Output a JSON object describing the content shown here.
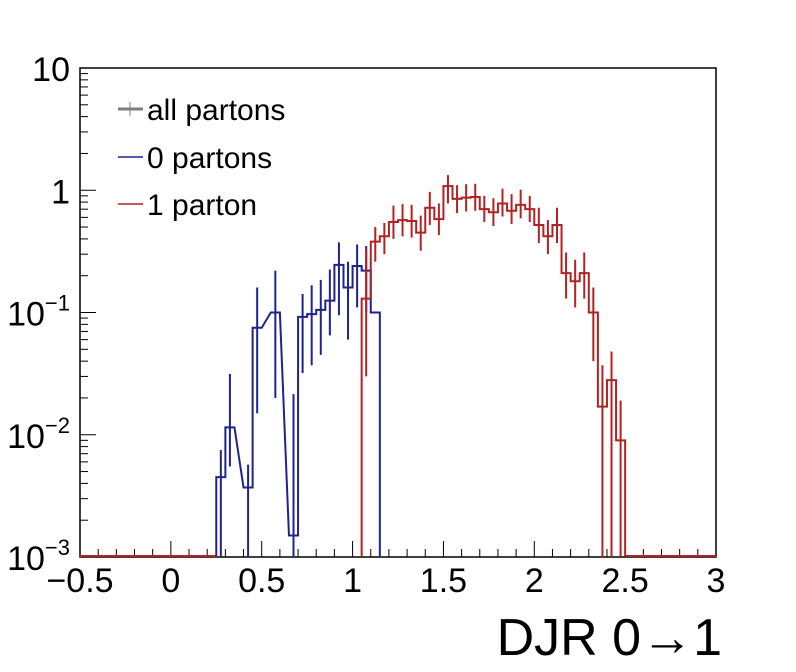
{
  "chart_data": {
    "type": "histogram",
    "xlabel": "DJR 0→1",
    "ylabel": "",
    "xlim": [
      -0.5,
      3
    ],
    "ylim": [
      0.001,
      10
    ],
    "y_scale": "log",
    "grid": false,
    "legend_position": "top-left",
    "x_ticks": [
      "−0.5",
      "0",
      "0.5",
      "1",
      "1.5",
      "2",
      "2.5",
      "3"
    ],
    "x_tick_values": [
      -0.5,
      0,
      0.5,
      1,
      1.5,
      2,
      2.5,
      3
    ],
    "y_ticks": [
      {
        "value": 10,
        "base": "10",
        "exp": ""
      },
      {
        "value": 1,
        "base": "1",
        "exp": ""
      },
      {
        "value": 0.1,
        "base": "10",
        "exp": "−1"
      },
      {
        "value": 0.01,
        "base": "10",
        "exp": "−2"
      },
      {
        "value": 0.001,
        "base": "10",
        "exp": "−3"
      }
    ],
    "bin_width": 0.05,
    "legend": [
      {
        "name": "all partons",
        "color": "#7f7f7f"
      },
      {
        "name": "0 partons",
        "color": "#1f2390"
      },
      {
        "name": "1 parton",
        "color": "#b22222"
      }
    ],
    "series": [
      {
        "name": "0 partons",
        "color": "#1f2390",
        "bins": [
          {
            "x": 0.25,
            "y": 0.0045,
            "yerr_low": 0.0045,
            "yerr_high": 0.003
          },
          {
            "x": 0.3,
            "y": 0.0115,
            "yerr_low": 0.006,
            "yerr_high": 0.02
          },
          {
            "x": 0.4,
            "y": 0.0037,
            "yerr_low": 0.0037,
            "yerr_high": 0.002
          },
          {
            "x": 0.45,
            "y": 0.075,
            "yerr_low": 0.06,
            "yerr_high": 0.085
          },
          {
            "x": 0.55,
            "y": 0.1,
            "yerr_low": 0.08,
            "yerr_high": 0.12
          },
          {
            "x": 0.65,
            "y": 0.0015,
            "yerr_low": 0.0015,
            "yerr_high": 0.02
          },
          {
            "x": 0.7,
            "y": 0.092,
            "yerr_low": 0.06,
            "yerr_high": 0.05
          },
          {
            "x": 0.75,
            "y": 0.097,
            "yerr_low": 0.06,
            "yerr_high": 0.07
          },
          {
            "x": 0.8,
            "y": 0.105,
            "yerr_low": 0.06,
            "yerr_high": 0.08
          },
          {
            "x": 0.85,
            "y": 0.125,
            "yerr_low": 0.06,
            "yerr_high": 0.1
          },
          {
            "x": 0.9,
            "y": 0.245,
            "yerr_low": 0.15,
            "yerr_high": 0.13
          },
          {
            "x": 0.95,
            "y": 0.16,
            "yerr_low": 0.1,
            "yerr_high": 0.1
          },
          {
            "x": 1.0,
            "y": 0.24,
            "yerr_low": 0.13,
            "yerr_high": 0.12
          },
          {
            "x": 1.05,
            "y": 0.22,
            "yerr_low": 0.12,
            "yerr_high": 0.13
          },
          {
            "x": 1.1,
            "y": 0.1,
            "yerr_low": 0.0,
            "yerr_high": 0.0
          }
        ]
      },
      {
        "name": "1 parton",
        "color": "#b22222",
        "bins": [
          {
            "x": 1.05,
            "y": 0.13,
            "yerr_low": 0.1,
            "yerr_high": 0.2
          },
          {
            "x": 1.1,
            "y": 0.38,
            "yerr_low": 0.12,
            "yerr_high": 0.12
          },
          {
            "x": 1.15,
            "y": 0.42,
            "yerr_low": 0.12,
            "yerr_high": 0.12
          },
          {
            "x": 1.2,
            "y": 0.55,
            "yerr_low": 0.15,
            "yerr_high": 0.2
          },
          {
            "x": 1.25,
            "y": 0.57,
            "yerr_low": 0.15,
            "yerr_high": 0.2
          },
          {
            "x": 1.3,
            "y": 0.56,
            "yerr_low": 0.15,
            "yerr_high": 0.2
          },
          {
            "x": 1.35,
            "y": 0.45,
            "yerr_low": 0.13,
            "yerr_high": 0.17
          },
          {
            "x": 1.4,
            "y": 0.72,
            "yerr_low": 0.2,
            "yerr_high": 0.25
          },
          {
            "x": 1.45,
            "y": 0.58,
            "yerr_low": 0.15,
            "yerr_high": 0.2
          },
          {
            "x": 1.5,
            "y": 1.08,
            "yerr_low": 0.3,
            "yerr_high": 0.25
          },
          {
            "x": 1.55,
            "y": 0.85,
            "yerr_low": 0.2,
            "yerr_high": 0.25
          },
          {
            "x": 1.6,
            "y": 0.87,
            "yerr_low": 0.2,
            "yerr_high": 0.25
          },
          {
            "x": 1.65,
            "y": 0.88,
            "yerr_low": 0.2,
            "yerr_high": 0.25
          },
          {
            "x": 1.7,
            "y": 0.7,
            "yerr_low": 0.15,
            "yerr_high": 0.2
          },
          {
            "x": 1.75,
            "y": 0.66,
            "yerr_low": 0.15,
            "yerr_high": 0.2
          },
          {
            "x": 1.8,
            "y": 0.78,
            "yerr_low": 0.17,
            "yerr_high": 0.25
          },
          {
            "x": 1.85,
            "y": 0.68,
            "yerr_low": 0.15,
            "yerr_high": 0.25
          },
          {
            "x": 1.9,
            "y": 0.76,
            "yerr_low": 0.17,
            "yerr_high": 0.25
          },
          {
            "x": 1.95,
            "y": 0.7,
            "yerr_low": 0.15,
            "yerr_high": 0.2
          },
          {
            "x": 2.0,
            "y": 0.52,
            "yerr_low": 0.15,
            "yerr_high": 0.2
          },
          {
            "x": 2.05,
            "y": 0.42,
            "yerr_low": 0.12,
            "yerr_high": 0.15
          },
          {
            "x": 2.1,
            "y": 0.52,
            "yerr_low": 0.15,
            "yerr_high": 0.2
          },
          {
            "x": 2.15,
            "y": 0.21,
            "yerr_low": 0.08,
            "yerr_high": 0.1
          },
          {
            "x": 2.2,
            "y": 0.18,
            "yerr_low": 0.07,
            "yerr_high": 0.09
          },
          {
            "x": 2.25,
            "y": 0.21,
            "yerr_low": 0.08,
            "yerr_high": 0.1
          },
          {
            "x": 2.3,
            "y": 0.1,
            "yerr_low": 0.06,
            "yerr_high": 0.06
          },
          {
            "x": 2.35,
            "y": 0.017,
            "yerr_low": 0.017,
            "yerr_high": 0.02
          },
          {
            "x": 2.4,
            "y": 0.028,
            "yerr_low": 0.028,
            "yerr_high": 0.02
          },
          {
            "x": 2.45,
            "y": 0.009,
            "yerr_low": 0.009,
            "yerr_high": 0.01
          }
        ]
      }
    ]
  }
}
